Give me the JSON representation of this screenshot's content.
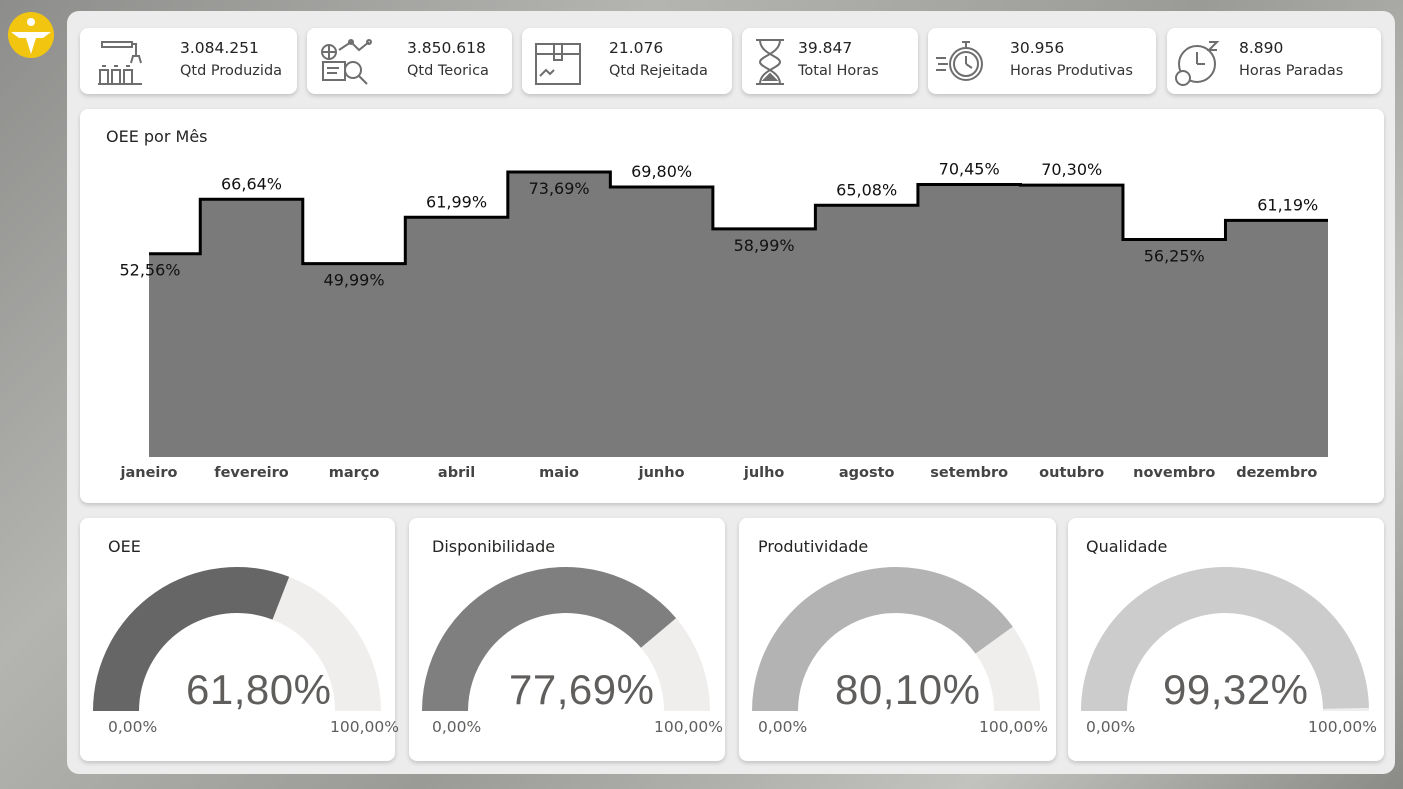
{
  "kpis": [
    {
      "value": "3.084.251",
      "label": "Qtd Produzida",
      "icon": "robot-arm-icon"
    },
    {
      "value": "3.850.618",
      "label": "Qtd Teorica",
      "icon": "analytics-search-icon"
    },
    {
      "value": "21.076",
      "label": "Qtd Rejeitada",
      "icon": "damaged-box-icon"
    },
    {
      "value": "39.847",
      "label": "Total Horas",
      "icon": "hourglass-icon"
    },
    {
      "value": "30.956",
      "label": "Horas Produtivas",
      "icon": "stopwatch-icon"
    },
    {
      "value": "8.890",
      "label": "Horas Paradas",
      "icon": "sleeping-clock-icon"
    }
  ],
  "chart_data": {
    "type": "area",
    "title": "OEE por Mês",
    "categories": [
      "janeiro",
      "fevereiro",
      "março",
      "abril",
      "maio",
      "junho",
      "julho",
      "agosto",
      "setembro",
      "outubro",
      "novembro",
      "dezembro"
    ],
    "values": [
      52.56,
      66.64,
      49.99,
      61.99,
      73.69,
      69.8,
      58.99,
      65.08,
      70.45,
      70.3,
      56.25,
      61.19
    ],
    "labels": [
      "52,56%",
      "66,64%",
      "49,99%",
      "61,99%",
      "73,69%",
      "69,80%",
      "58,99%",
      "65,08%",
      "70,45%",
      "70,30%",
      "56,25%",
      "61,19%"
    ],
    "ylim": [
      0,
      73.69
    ],
    "step": true,
    "colors": {
      "fill": "#7a7a7a",
      "line": "#000000"
    }
  },
  "gauges": [
    {
      "title": "OEE",
      "value": 61.8,
      "label": "61,80%",
      "min": "0,00%",
      "max": "100,00%",
      "color": "#666666"
    },
    {
      "title": "Disponibilidade",
      "value": 77.69,
      "label": "77,69%",
      "min": "0,00%",
      "max": "100,00%",
      "color": "#7f7f7f"
    },
    {
      "title": "Produtividade",
      "value": 80.1,
      "label": "80,10%",
      "min": "0,00%",
      "max": "100,00%",
      "color": "#b3b3b3"
    },
    {
      "title": "Qualidade",
      "value": 99.32,
      "label": "99,32%",
      "min": "0,00%",
      "max": "100,00%",
      "color": "#cccccc"
    }
  ],
  "gauge_track_color": "#f0eeed",
  "accent": "#f2c511"
}
